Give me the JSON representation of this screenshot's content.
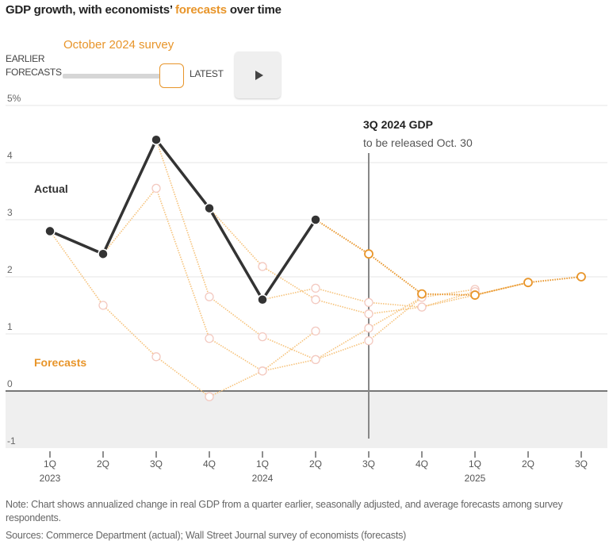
{
  "header": {
    "title_prefix": "GDP growth, with economists’ ",
    "title_highlight": "forecasts",
    "title_suffix": " over time"
  },
  "controls": {
    "survey_label": "October 2024 survey",
    "earlier_label_line1": "EARLIER",
    "earlier_label_line2": "FORECASTS",
    "latest_label": "LATEST",
    "slider_position": 1.0,
    "play_icon": "play-icon"
  },
  "colors": {
    "actual": "#333333",
    "forecast_current": "#e8952a",
    "forecast_past": "#f6c27a",
    "forecast_past_marker": "#f3c9c0",
    "negative_shade": "#efefef",
    "grid": "#e6e6e6"
  },
  "chart_data": {
    "type": "line",
    "title": "GDP growth, with economists’ forecasts over time",
    "xlabel": "",
    "ylabel": "",
    "ylim": [
      -1,
      5
    ],
    "y_ticks": [
      {
        "value": 5,
        "label": "5%"
      },
      {
        "value": 4,
        "label": "4"
      },
      {
        "value": 3,
        "label": "3"
      },
      {
        "value": 2,
        "label": "2"
      },
      {
        "value": 1,
        "label": "1"
      },
      {
        "value": 0,
        "label": "0"
      },
      {
        "value": -1,
        "label": "-1"
      }
    ],
    "categories": [
      "1Q",
      "2Q",
      "3Q",
      "4Q",
      "1Q",
      "2Q",
      "3Q",
      "4Q",
      "1Q",
      "2Q",
      "3Q"
    ],
    "year_labels": [
      {
        "index": 0,
        "label": "2023"
      },
      {
        "index": 4,
        "label": "2024"
      },
      {
        "index": 8,
        "label": "2025"
      }
    ],
    "grid": true,
    "series_labels": {
      "actual": "Actual",
      "forecasts": "Forecasts"
    },
    "actual": {
      "name": "Actual",
      "x": [
        0,
        1,
        2,
        3,
        4,
        5
      ],
      "values": [
        2.8,
        2.4,
        4.4,
        3.2,
        1.6,
        3.0
      ]
    },
    "forecast_series": [
      {
        "name": "Earlier forecast 1",
        "x": [
          0,
          1,
          2,
          3,
          4,
          5
        ],
        "values": [
          2.8,
          1.5,
          0.6,
          -0.1,
          0.35,
          1.05
        ],
        "current": false
      },
      {
        "name": "Earlier forecast 2",
        "x": [
          1,
          2,
          3,
          4,
          5,
          6,
          7
        ],
        "values": [
          2.4,
          3.55,
          0.92,
          0.35,
          0.55,
          1.1,
          1.64
        ],
        "current": false
      },
      {
        "name": "Earlier forecast 3",
        "x": [
          2,
          3,
          4,
          5,
          6,
          7,
          8
        ],
        "values": [
          4.4,
          1.65,
          0.95,
          0.55,
          0.88,
          1.64,
          1.78
        ],
        "current": false
      },
      {
        "name": "Earlier forecast 4",
        "x": [
          3,
          4,
          5,
          6,
          7,
          8
        ],
        "values": [
          3.2,
          2.18,
          1.6,
          1.35,
          1.47,
          1.74
        ],
        "current": false
      },
      {
        "name": "Earlier forecast 5",
        "x": [
          4,
          5,
          6,
          7,
          8,
          9
        ],
        "values": [
          1.6,
          1.8,
          1.55,
          1.47,
          1.68,
          1.9
        ],
        "current": false
      },
      {
        "name": "October 2024 survey",
        "x": [
          5,
          6,
          7,
          8,
          9,
          10
        ],
        "values": [
          3.0,
          2.4,
          1.7,
          1.68,
          1.9,
          2.0
        ],
        "current": true
      }
    ],
    "annotation": {
      "x_index": 6,
      "title": "3Q 2024 GDP",
      "subtitle": "to be released Oct. 30"
    }
  },
  "footer": {
    "note": "Note: Chart shows annualized change in real GDP from a quarter earlier, seasonally adjusted, and average forecasts among survey respondents.",
    "sources": "Sources: Commerce Department (actual); Wall Street Journal survey of economists (forecasts)"
  }
}
